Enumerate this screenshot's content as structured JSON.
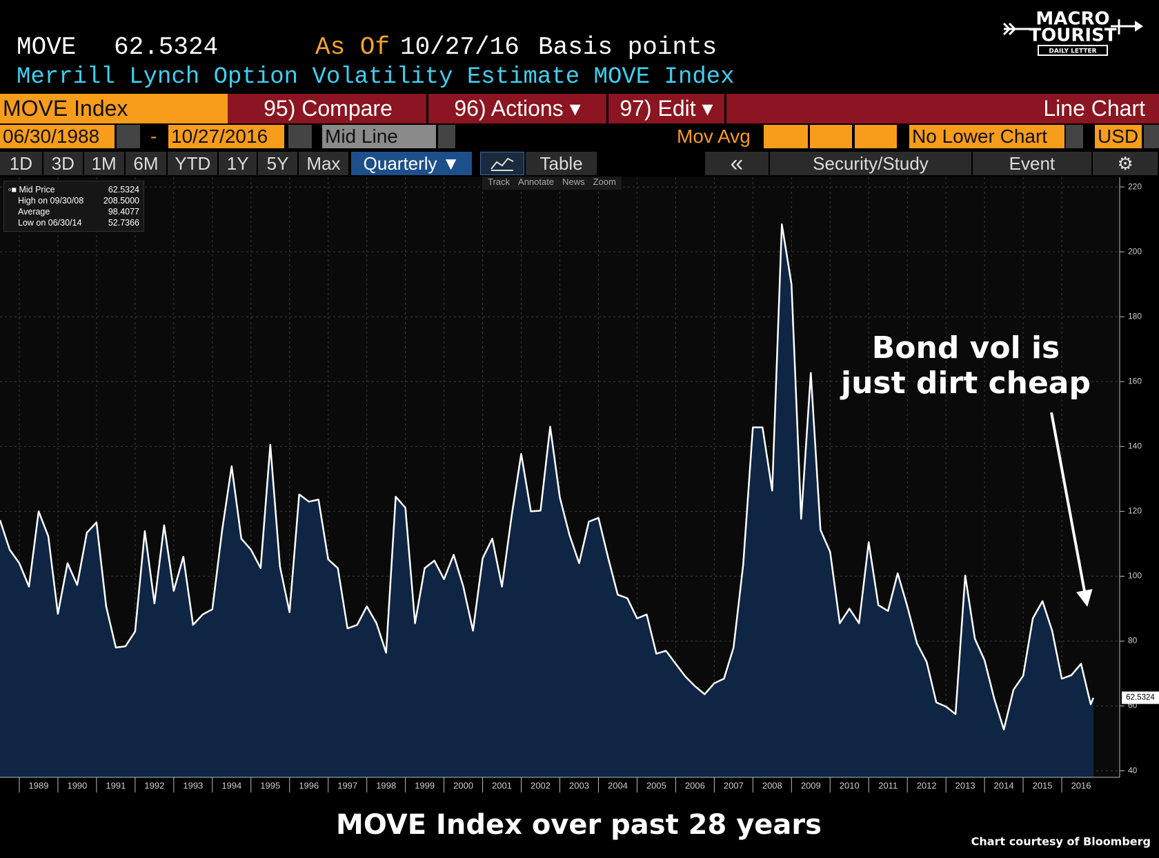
{
  "header": {
    "ticker": "MOVE",
    "price": "62.5324",
    "as_of_label": "As Of",
    "date": "10/27/16",
    "units": "Basis points",
    "description": "Merrill Lynch Option Volatility Estimate MOVE Index"
  },
  "logo": {
    "line1": "MACRO",
    "line2": "TOURIST",
    "line3": "DAILY LETTER"
  },
  "toolbar": {
    "security": "MOVE Index",
    "compare": "95) Compare",
    "actions": "96) Actions ▾",
    "edit": "97) Edit ▾",
    "chart_type": "Line Chart",
    "start_date": "06/30/1988",
    "separator": "-",
    "end_date": "10/27/2016",
    "line_mode": "Mid Line",
    "mov_avg": "Mov Avg",
    "lower_chart": "No Lower Chart",
    "currency": "USD",
    "periods": [
      "1D",
      "3D",
      "1M",
      "6M",
      "YTD",
      "1Y",
      "5Y",
      "Max"
    ],
    "frequency": "Quarterly ▼",
    "table": "Table",
    "back": "«",
    "security_study": "Security/Study",
    "event": "Event",
    "tools": [
      "Track",
      "Annotate",
      "News",
      "Zoom"
    ]
  },
  "legend_stats": [
    {
      "label": "High on 09/30/08",
      "value": "208.5000"
    },
    {
      "label": "Average",
      "value": "98.4077"
    },
    {
      "label": "Low on 06/30/14",
      "value": "52.7366"
    }
  ],
  "chart_data": {
    "type": "line",
    "title": "MOVE Index over past 28 years",
    "source": "Chart courtesy of Bloomberg",
    "annotations": [
      "Bond vol is",
      "just dirt cheap"
    ],
    "x": [
      1988.5,
      1988.75,
      1989,
      1989.25,
      1989.5,
      1989.75,
      1990,
      1990.25,
      1990.5,
      1990.75,
      1991,
      1991.25,
      1991.5,
      1991.75,
      1992,
      1992.25,
      1992.5,
      1992.75,
      1993,
      1993.25,
      1993.5,
      1993.75,
      1994,
      1994.25,
      1994.5,
      1994.75,
      1995,
      1995.25,
      1995.5,
      1995.75,
      1996,
      1996.25,
      1996.5,
      1996.75,
      1997,
      1997.25,
      1997.5,
      1997.75,
      1998,
      1998.25,
      1998.5,
      1998.75,
      1999,
      1999.25,
      1999.5,
      1999.75,
      2000,
      2000.25,
      2000.5,
      2000.75,
      2001,
      2001.25,
      2001.5,
      2001.75,
      2002,
      2002.25,
      2002.5,
      2002.75,
      2003,
      2003.25,
      2003.5,
      2003.75,
      2004,
      2004.25,
      2004.5,
      2004.75,
      2005,
      2005.25,
      2005.5,
      2005.75,
      2006,
      2006.25,
      2006.5,
      2006.75,
      2007,
      2007.25,
      2007.5,
      2007.75,
      2008,
      2008.25,
      2008.5,
      2008.75,
      2009,
      2009.25,
      2009.5,
      2009.75,
      2010,
      2010.25,
      2010.5,
      2010.75,
      2011,
      2011.25,
      2011.5,
      2011.75,
      2012,
      2012.25,
      2012.5,
      2012.75,
      2013,
      2013.25,
      2013.5,
      2013.75,
      2014,
      2014.25,
      2014.5,
      2014.75,
      2015,
      2015.25,
      2015.5,
      2015.75,
      2016,
      2016.25,
      2016.5,
      2016.75,
      2016.82
    ],
    "series": [
      {
        "name": "Mid Price",
        "color": "#ffffff",
        "fill": "#0f2544",
        "values": [
          117.3,
          108.2,
          104,
          96.8,
          120,
          112.3,
          88.4,
          104,
          97.3,
          113.4,
          116.6,
          90.7,
          78,
          78.4,
          83,
          113.9,
          91.6,
          115.7,
          95.5,
          106,
          85,
          88.2,
          89.8,
          113.9,
          133.9,
          111.6,
          108.2,
          102.5,
          140.5,
          103,
          88.9,
          125.2,
          123,
          123.6,
          105.2,
          102.5,
          83.9,
          85,
          90.7,
          85.5,
          76.4,
          124.5,
          121.1,
          85.5,
          102.5,
          104.8,
          99.1,
          106.6,
          96.8,
          83.2,
          105.5,
          111.6,
          96.8,
          118.4,
          137.7,
          120,
          120.2,
          146.1,
          124.3,
          112.7,
          104,
          116.8,
          118,
          105.7,
          94.3,
          93.2,
          87,
          88.2,
          76.1,
          77,
          73,
          69.1,
          66.1,
          63.6,
          67,
          68.4,
          78,
          103.6,
          145.9,
          145.9,
          126.4,
          208.5,
          190,
          117.7,
          162.7,
          114.3,
          107.5,
          85.5,
          90,
          85.5,
          110.5,
          91.1,
          89.3,
          100.9,
          90.7,
          79.3,
          73.6,
          61.1,
          59.8,
          57.5,
          100.2,
          80.7,
          74.1,
          62.3,
          52.7366,
          65,
          69.3,
          87,
          92.3,
          83.2,
          68.4,
          69.5,
          73,
          60.5,
          62.5324
        ]
      }
    ],
    "xlim": [
      1988.5,
      2017.5
    ],
    "xticks": [
      {
        "value": 1989,
        "label": "1989"
      },
      {
        "value": 1990,
        "label": "1990"
      },
      {
        "value": 1991,
        "label": "1991"
      },
      {
        "value": 1992,
        "label": "1992"
      },
      {
        "value": 1993,
        "label": "1993"
      },
      {
        "value": 1994,
        "label": "1994"
      },
      {
        "value": 1995,
        "label": "1995"
      },
      {
        "value": 1996,
        "label": "1996"
      },
      {
        "value": 1997,
        "label": "1997"
      },
      {
        "value": 1998,
        "label": "1998"
      },
      {
        "value": 1999,
        "label": "1999"
      },
      {
        "value": 2000,
        "label": "2000"
      },
      {
        "value": 2001,
        "label": "2001"
      },
      {
        "value": 2002,
        "label": "2002"
      },
      {
        "value": 2003,
        "label": "2003"
      },
      {
        "value": 2004,
        "label": "2004"
      },
      {
        "value": 2005,
        "label": "2005"
      },
      {
        "value": 2006,
        "label": "2006"
      },
      {
        "value": 2007,
        "label": "2007"
      },
      {
        "value": 2008,
        "label": "2008"
      },
      {
        "value": 2009,
        "label": "2009"
      },
      {
        "value": 2010,
        "label": "2010"
      },
      {
        "value": 2011,
        "label": "2011"
      },
      {
        "value": 2012,
        "label": "2012"
      },
      {
        "value": 2013,
        "label": "2013"
      },
      {
        "value": 2014,
        "label": "2014"
      },
      {
        "value": 2015,
        "label": "2015"
      },
      {
        "value": 2016,
        "label": "2016"
      }
    ],
    "ylim": [
      38,
      223
    ],
    "yticks": [
      40,
      60,
      80,
      100,
      120,
      140,
      160,
      180,
      200,
      220
    ],
    "grid": true
  }
}
